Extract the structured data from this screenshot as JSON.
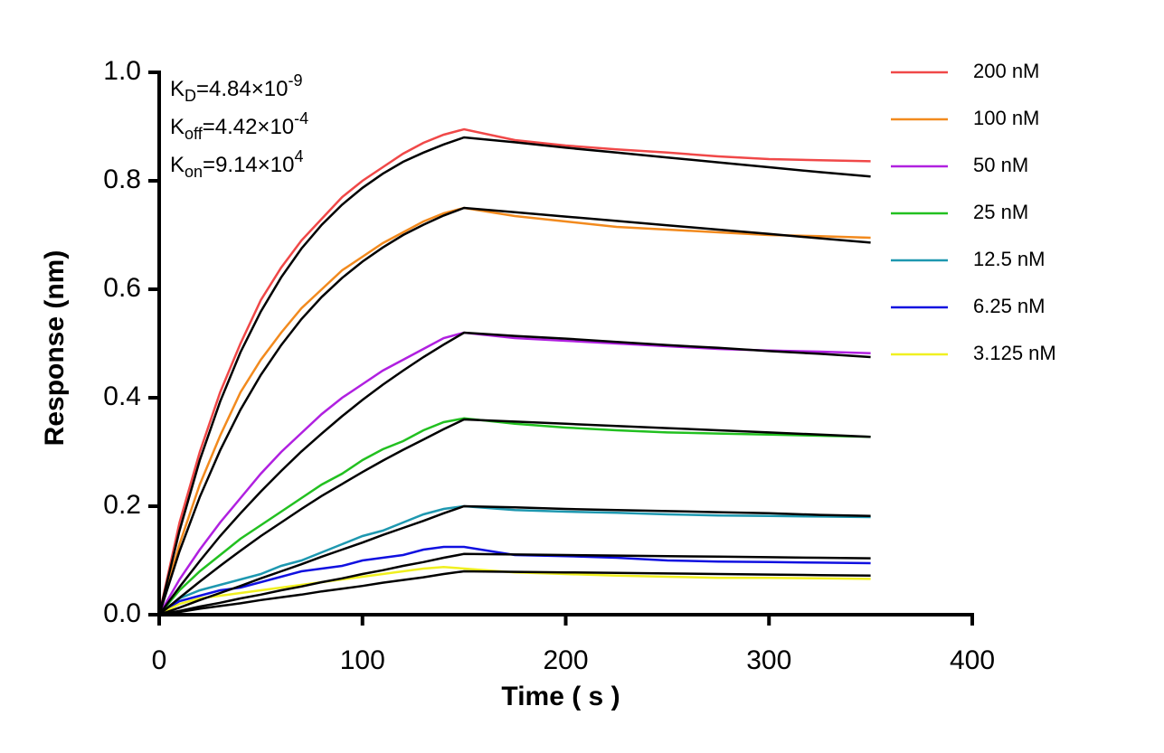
{
  "chart_data": {
    "type": "line",
    "x_label": "Time ( s )",
    "y_label": "Response (nm)",
    "annotations": [
      {
        "symbol": "K",
        "sub": "D",
        "text": "=4.84×10",
        "sup": "-9"
      },
      {
        "symbol": "K",
        "sub": "off",
        "text": "=4.42×10",
        "sup": "-4"
      },
      {
        "symbol": "K",
        "sub": "on",
        "text": "=9.14×10",
        "sup": "4"
      }
    ],
    "x": [
      0,
      10,
      20,
      30,
      40,
      50,
      60,
      70,
      80,
      90,
      100,
      110,
      120,
      130,
      140,
      150,
      175,
      200,
      225,
      250,
      275,
      300,
      325,
      350
    ],
    "xlim": [
      0,
      400
    ],
    "xticks": [
      0,
      100,
      200,
      300,
      400
    ],
    "ylim": [
      0,
      1
    ],
    "yticks": [
      {
        "value": 0,
        "label": "0.0"
      },
      {
        "value": 0.2,
        "label": "0.2"
      },
      {
        "value": 0.4,
        "label": "0.4"
      },
      {
        "value": 0.6,
        "label": "0.6"
      },
      {
        "value": 0.8,
        "label": "0.8"
      },
      {
        "value": 1,
        "label": "1.0"
      }
    ],
    "legend": "right",
    "series": [
      {
        "name": "200 nM",
        "color": "#f04848",
        "values": [
          0,
          0.17,
          0.3,
          0.41,
          0.5,
          0.58,
          0.64,
          0.69,
          0.73,
          0.77,
          0.8,
          0.825,
          0.85,
          0.87,
          0.885,
          0.895,
          0.875,
          0.865,
          0.858,
          0.852,
          0.845,
          0.84,
          0.838,
          0.836
        ]
      },
      {
        "name": "100 nM",
        "color": "#f28a1e",
        "values": [
          0,
          0.13,
          0.24,
          0.33,
          0.41,
          0.47,
          0.52,
          0.565,
          0.6,
          0.635,
          0.66,
          0.685,
          0.705,
          0.725,
          0.74,
          0.75,
          0.735,
          0.725,
          0.715,
          0.71,
          0.705,
          0.7,
          0.698,
          0.695
        ]
      },
      {
        "name": "50 nM",
        "color": "#b020e0",
        "values": [
          0,
          0.065,
          0.12,
          0.17,
          0.215,
          0.26,
          0.3,
          0.335,
          0.37,
          0.4,
          0.425,
          0.45,
          0.47,
          0.49,
          0.51,
          0.52,
          0.51,
          0.505,
          0.5,
          0.495,
          0.49,
          0.487,
          0.485,
          0.482
        ]
      },
      {
        "name": "25 nM",
        "color": "#22c020",
        "values": [
          0,
          0.045,
          0.08,
          0.11,
          0.14,
          0.165,
          0.19,
          0.215,
          0.24,
          0.26,
          0.285,
          0.305,
          0.32,
          0.34,
          0.355,
          0.362,
          0.352,
          0.345,
          0.34,
          0.336,
          0.334,
          0.332,
          0.33,
          0.328
        ]
      },
      {
        "name": "12.5 nM",
        "color": "#1e98b0",
        "values": [
          0,
          0.03,
          0.045,
          0.055,
          0.065,
          0.075,
          0.09,
          0.1,
          0.115,
          0.13,
          0.145,
          0.155,
          0.17,
          0.185,
          0.195,
          0.2,
          0.193,
          0.19,
          0.188,
          0.185,
          0.183,
          0.182,
          0.181,
          0.18
        ]
      },
      {
        "name": "6.25 nM",
        "color": "#1010e0",
        "values": [
          0,
          0.025,
          0.035,
          0.045,
          0.05,
          0.06,
          0.07,
          0.08,
          0.085,
          0.09,
          0.1,
          0.105,
          0.11,
          0.12,
          0.125,
          0.125,
          0.11,
          0.108,
          0.105,
          0.1,
          0.098,
          0.097,
          0.096,
          0.095
        ]
      },
      {
        "name": "3.125 nM",
        "color": "#f0f020",
        "values": [
          0,
          0.02,
          0.03,
          0.035,
          0.04,
          0.045,
          0.05,
          0.055,
          0.06,
          0.065,
          0.07,
          0.075,
          0.08,
          0.085,
          0.088,
          0.085,
          0.078,
          0.075,
          0.072,
          0.07,
          0.068,
          0.068,
          0.067,
          0.066
        ]
      },
      {
        "color": "#000000",
        "values": [
          0,
          0.155,
          0.285,
          0.393,
          0.484,
          0.559,
          0.622,
          0.675,
          0.719,
          0.756,
          0.787,
          0.813,
          0.835,
          0.852,
          0.867,
          0.88,
          0.871,
          0.861,
          0.852,
          0.843,
          0.834,
          0.825,
          0.816,
          0.808
        ]
      },
      {
        "color": "#000000",
        "values": [
          0,
          0.117,
          0.217,
          0.303,
          0.378,
          0.442,
          0.497,
          0.545,
          0.586,
          0.621,
          0.651,
          0.677,
          0.7,
          0.719,
          0.736,
          0.75,
          0.742,
          0.734,
          0.726,
          0.718,
          0.71,
          0.702,
          0.694,
          0.686
        ]
      },
      {
        "color": "#000000",
        "values": [
          0,
          0.051,
          0.099,
          0.145,
          0.187,
          0.227,
          0.265,
          0.301,
          0.334,
          0.366,
          0.396,
          0.424,
          0.45,
          0.475,
          0.498,
          0.52,
          0.514,
          0.509,
          0.503,
          0.497,
          0.492,
          0.486,
          0.481,
          0.475
        ]
      },
      {
        "color": "#000000",
        "values": [
          0,
          0.031,
          0.061,
          0.09,
          0.118,
          0.145,
          0.17,
          0.195,
          0.219,
          0.241,
          0.263,
          0.284,
          0.304,
          0.323,
          0.342,
          0.36,
          0.356,
          0.352,
          0.348,
          0.344,
          0.34,
          0.336,
          0.332,
          0.328
        ]
      },
      {
        "color": "#000000",
        "values": [
          0,
          0.013,
          0.027,
          0.04,
          0.053,
          0.067,
          0.08,
          0.093,
          0.107,
          0.12,
          0.133,
          0.147,
          0.16,
          0.173,
          0.187,
          0.2,
          0.198,
          0.195,
          0.193,
          0.191,
          0.189,
          0.187,
          0.184,
          0.182
        ]
      },
      {
        "color": "#000000",
        "values": [
          0,
          0.007,
          0.015,
          0.022,
          0.03,
          0.037,
          0.045,
          0.052,
          0.06,
          0.067,
          0.075,
          0.082,
          0.09,
          0.097,
          0.105,
          0.112,
          0.111,
          0.11,
          0.109,
          0.108,
          0.107,
          0.106,
          0.105,
          0.104
        ]
      },
      {
        "color": "#000000",
        "values": [
          0,
          0.005,
          0.011,
          0.016,
          0.021,
          0.027,
          0.032,
          0.037,
          0.043,
          0.048,
          0.053,
          0.059,
          0.064,
          0.069,
          0.075,
          0.08,
          0.079,
          0.078,
          0.077,
          0.076,
          0.075,
          0.074,
          0.073,
          0.072
        ]
      }
    ]
  }
}
